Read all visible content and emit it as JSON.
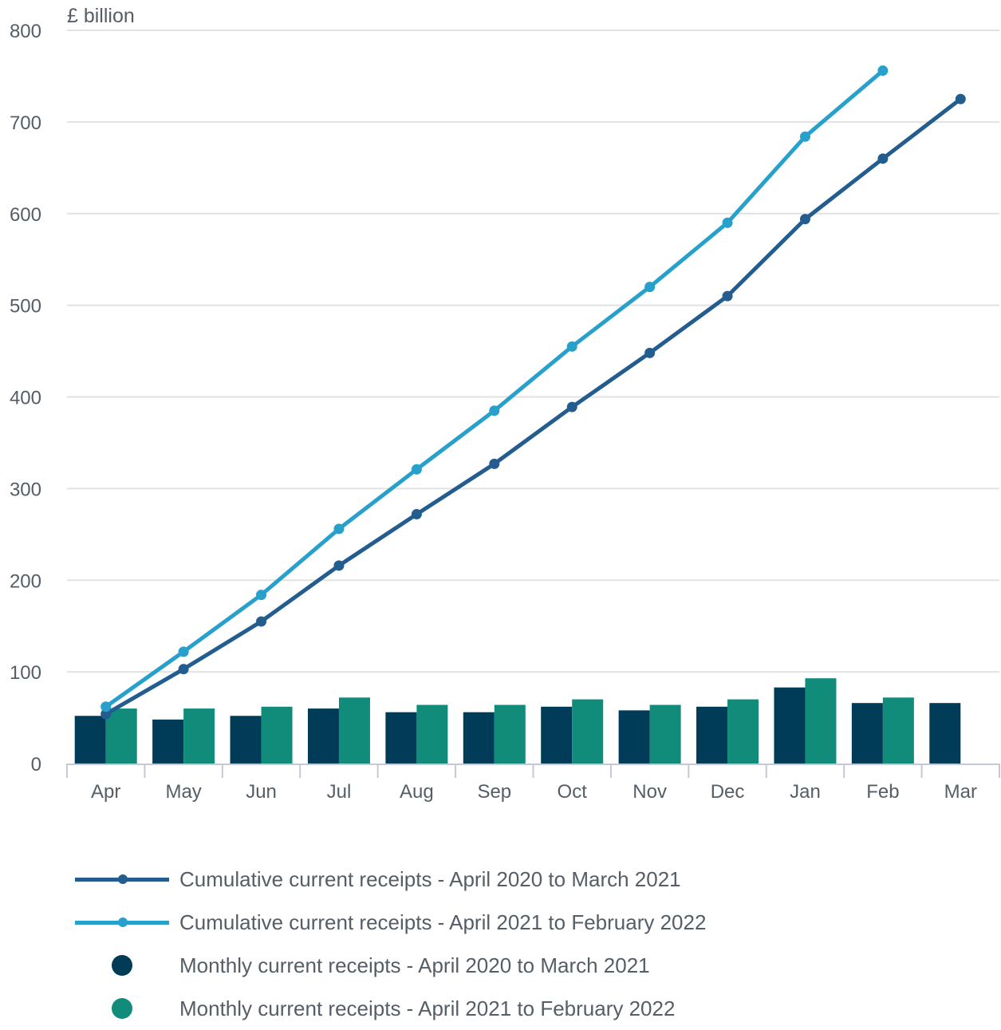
{
  "chart_data": {
    "type": "bar",
    "ylabel": "£ billion",
    "ylim": [
      0,
      800
    ],
    "yticks": [
      0,
      100,
      200,
      300,
      400,
      500,
      600,
      700,
      800
    ],
    "categories": [
      "Apr",
      "May",
      "Jun",
      "Jul",
      "Aug",
      "Sep",
      "Oct",
      "Nov",
      "Dec",
      "Jan",
      "Feb",
      "Mar"
    ],
    "grid": true,
    "legend_position": "bottom",
    "series": [
      {
        "name": "Cumulative current receipts - April 2020 to March 2021",
        "type": "line",
        "color": "#235d8f",
        "values": [
          54,
          103,
          155,
          216,
          272,
          327,
          389,
          448,
          510,
          594,
          660,
          725
        ]
      },
      {
        "name": "Cumulative current receipts - April 2021 to February 2022",
        "type": "line",
        "color": "#27a0cc",
        "values": [
          62,
          122,
          184,
          256,
          321,
          385,
          455,
          520,
          590,
          684,
          756,
          null
        ]
      },
      {
        "name": "Monthly current receipts - April 2020 to March 2021",
        "type": "bar",
        "color": "#003c57",
        "values": [
          52,
          48,
          52,
          60,
          56,
          56,
          62,
          58,
          62,
          83,
          66,
          66
        ]
      },
      {
        "name": "Monthly current receipts - April 2021 to February 2022",
        "type": "bar",
        "color": "#118c7b",
        "values": [
          60,
          60,
          62,
          72,
          64,
          64,
          70,
          64,
          70,
          93,
          72,
          null
        ]
      }
    ]
  }
}
